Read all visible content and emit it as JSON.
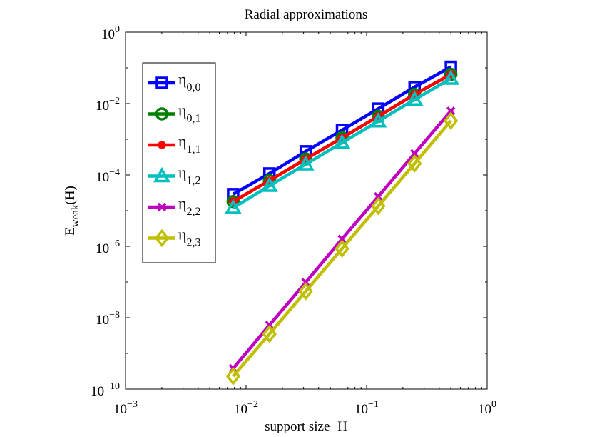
{
  "chart_data": {
    "type": "line",
    "title": "Radial approximations",
    "xlabel": "support size−H",
    "ylabel": {
      "base": "E",
      "sub": "weak",
      "tail": "(H)"
    },
    "xscale": "log",
    "yscale": "log",
    "xlim": [
      0.001,
      1
    ],
    "ylim": [
      1e-10,
      1
    ],
    "xticks": [
      {
        "value": 0.001,
        "base": "10",
        "exp": "−3"
      },
      {
        "value": 0.01,
        "base": "10",
        "exp": "−2"
      },
      {
        "value": 0.1,
        "base": "10",
        "exp": "−1"
      },
      {
        "value": 1,
        "base": "10",
        "exp": "0"
      }
    ],
    "yticks": [
      {
        "value": 1e-10,
        "base": "10",
        "exp": "−10"
      },
      {
        "value": 1e-08,
        "base": "10",
        "exp": "−8"
      },
      {
        "value": 1e-06,
        "base": "10",
        "exp": "−6"
      },
      {
        "value": 0.0001,
        "base": "10",
        "exp": "−4"
      },
      {
        "value": 0.01,
        "base": "10",
        "exp": "−2"
      },
      {
        "value": 1,
        "base": "10",
        "exp": "0"
      }
    ],
    "grid": false,
    "legend_position": "top-left",
    "x": [
      0.0078125,
      0.015625,
      0.03125,
      0.0625,
      0.125,
      0.25,
      0.5
    ],
    "series": [
      {
        "name": "η",
        "sub": "0,0",
        "color": "#0000ff",
        "marker": "square",
        "values": [
          2.9e-05,
          0.00011,
          0.00046,
          0.0018,
          0.0072,
          0.029,
          0.107
        ]
      },
      {
        "name": "η",
        "sub": "0,1",
        "color": "#007f00",
        "marker": "circle",
        "values": [
          1.8e-05,
          7e-05,
          0.00028,
          0.0011,
          0.0044,
          0.018,
          0.066
        ]
      },
      {
        "name": "η",
        "sub": "1,1",
        "color": "#ff0000",
        "marker": "asterisk",
        "values": [
          1.8e-05,
          7e-05,
          0.00028,
          0.0011,
          0.0044,
          0.018,
          0.066
        ]
      },
      {
        "name": "η",
        "sub": "1,2",
        "color": "#00bfbf",
        "marker": "triangle",
        "values": [
          1.2e-05,
          5e-05,
          0.0002,
          0.0008,
          0.0032,
          0.013,
          0.05
        ]
      },
      {
        "name": "η",
        "sub": "2,2",
        "color": "#bf00bf",
        "marker": "x",
        "values": [
          3.8e-10,
          6.2e-09,
          9.8e-08,
          1.6e-06,
          2.5e-05,
          0.0004,
          0.0062
        ]
      },
      {
        "name": "η",
        "sub": "2,3",
        "color": "#bfbf00",
        "marker": "diamond",
        "values": [
          2.3e-10,
          3.5e-09,
          5.5e-08,
          8.6e-07,
          1.35e-05,
          0.00021,
          0.0033
        ]
      }
    ]
  }
}
